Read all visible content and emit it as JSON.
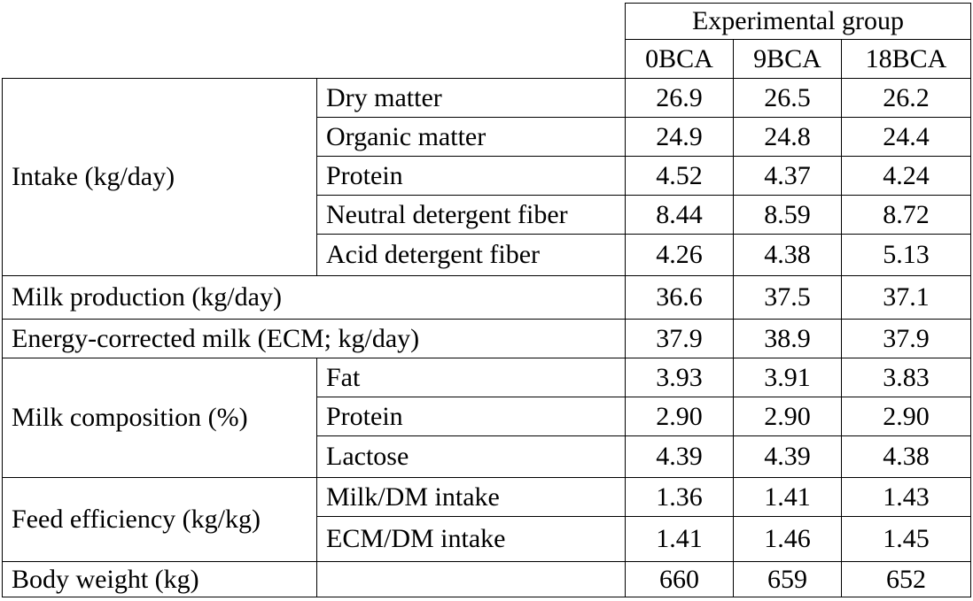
{
  "table": {
    "group_header": "Experimental group",
    "columns": [
      "0BCA",
      "9BCA",
      "18BCA"
    ],
    "rows": [
      {
        "category": "Intake (kg/day)",
        "item": "Dry matter",
        "values": [
          "26.9",
          "26.5",
          "26.2"
        ]
      },
      {
        "category": "",
        "item": "Organic matter",
        "values": [
          "24.9",
          "24.8",
          "24.4"
        ]
      },
      {
        "category": "",
        "item": "Protein",
        "values": [
          "4.52",
          "4.37",
          "4.24"
        ]
      },
      {
        "category": "",
        "item": "Neutral detergent fiber",
        "values": [
          "8.44",
          "8.59",
          "8.72"
        ]
      },
      {
        "category": "",
        "item": "Acid detergent fiber",
        "values": [
          "4.26",
          "4.38",
          "5.13"
        ]
      },
      {
        "category": "Milk production (kg/day)",
        "item": "",
        "values": [
          "36.6",
          "37.5",
          "37.1"
        ]
      },
      {
        "category": "Energy-corrected milk (ECM; kg/day)",
        "item": "",
        "values": [
          "37.9",
          "38.9",
          "37.9"
        ]
      },
      {
        "category": "Milk composition (%)",
        "item": "Fat",
        "values": [
          "3.93",
          "3.91",
          "3.83"
        ]
      },
      {
        "category": "",
        "item": "Protein",
        "values": [
          "2.90",
          "2.90",
          "2.90"
        ]
      },
      {
        "category": "",
        "item": "Lactose",
        "values": [
          "4.39",
          "4.39",
          "4.38"
        ]
      },
      {
        "category": "Feed efficiency (kg/kg)",
        "item": "Milk/DM intake",
        "values": [
          "1.36",
          "1.41",
          "1.43"
        ]
      },
      {
        "category": "",
        "item": "ECM/DM intake",
        "values": [
          "1.41",
          "1.46",
          "1.45"
        ]
      },
      {
        "category": "Body weight (kg)",
        "item": "",
        "values": [
          "660",
          "659",
          "652"
        ]
      }
    ]
  }
}
